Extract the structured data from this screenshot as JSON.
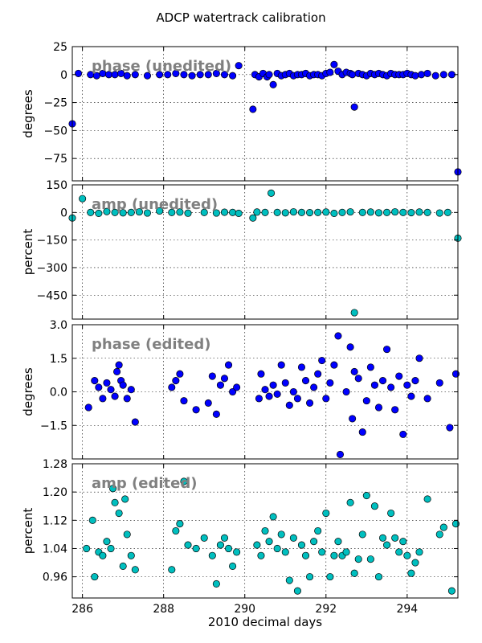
{
  "figure": {
    "title": "ADCP watertrack calibration",
    "xlabel": "2010 decimal days"
  },
  "chart_data": [
    {
      "type": "scatter",
      "annotation": "phase (unedited)",
      "xlabel": "2010 decimal days",
      "ylabel": "degrees",
      "xlim": [
        285.75,
        295.25
      ],
      "ylim": [
        -95,
        25
      ],
      "xticks": [
        286,
        288,
        290,
        292,
        294
      ],
      "yticks": [
        25,
        0,
        -25,
        -50,
        -75
      ],
      "grid": true,
      "color": "#0000ff",
      "x": [
        285.75,
        285.9,
        286.2,
        286.35,
        286.5,
        286.65,
        286.8,
        286.95,
        287.1,
        287.3,
        287.6,
        287.9,
        288.1,
        288.3,
        288.5,
        288.7,
        288.9,
        289.1,
        289.3,
        289.5,
        289.7,
        289.85,
        290.2,
        290.25,
        290.35,
        290.45,
        290.55,
        290.6,
        290.7,
        290.8,
        290.9,
        291.0,
        291.1,
        291.2,
        291.3,
        291.4,
        291.5,
        291.6,
        291.7,
        291.8,
        291.9,
        292.0,
        292.1,
        292.2,
        292.3,
        292.4,
        292.5,
        292.6,
        292.65,
        292.7,
        292.8,
        292.9,
        293.0,
        293.1,
        293.2,
        293.3,
        293.4,
        293.5,
        293.6,
        293.7,
        293.8,
        293.9,
        294.0,
        294.1,
        294.2,
        294.35,
        294.5,
        294.7,
        294.9,
        295.1,
        295.25
      ],
      "y": [
        -44,
        1,
        0,
        -1,
        1,
        0,
        0,
        1,
        -1,
        0,
        -1,
        0,
        0,
        1,
        0,
        -1,
        0,
        0,
        1,
        0,
        -1,
        8,
        -31,
        0,
        -2,
        1,
        -2,
        0,
        -9,
        1,
        -1,
        0,
        1,
        -1,
        0,
        0,
        1,
        -1,
        0,
        0,
        -1,
        1,
        2,
        9,
        3,
        0,
        2,
        1,
        0,
        -29,
        1,
        0,
        -1,
        1,
        0,
        1,
        0,
        -1,
        1,
        0,
        0,
        0,
        1,
        0,
        -1,
        0,
        1,
        -1,
        0,
        0,
        -87
      ]
    },
    {
      "type": "scatter",
      "annotation": "amp (unedited)",
      "xlabel": "2010 decimal days",
      "ylabel": "percent",
      "xlim": [
        285.75,
        295.25
      ],
      "ylim": [
        -580,
        150
      ],
      "xticks": [
        286,
        288,
        290,
        292,
        294
      ],
      "yticks": [
        150,
        0,
        -150,
        -300,
        -450
      ],
      "grid": true,
      "color": "#00bfbf",
      "x": [
        285.75,
        286.0,
        286.2,
        286.4,
        286.6,
        286.8,
        287.0,
        287.2,
        287.4,
        287.6,
        287.9,
        288.2,
        288.4,
        288.6,
        289.0,
        289.3,
        289.5,
        289.7,
        289.85,
        290.2,
        290.3,
        290.5,
        290.65,
        290.8,
        291.0,
        291.2,
        291.4,
        291.6,
        291.8,
        292.0,
        292.2,
        292.4,
        292.6,
        292.7,
        292.9,
        293.1,
        293.3,
        293.5,
        293.7,
        293.9,
        294.1,
        294.3,
        294.5,
        294.8,
        295.0,
        295.25
      ],
      "y": [
        -30,
        75,
        0,
        -5,
        5,
        0,
        -2,
        0,
        3,
        -3,
        8,
        0,
        2,
        -4,
        0,
        -3,
        1,
        0,
        -5,
        -30,
        2,
        0,
        105,
        0,
        -2,
        3,
        0,
        -1,
        0,
        2,
        -5,
        0,
        3,
        -545,
        0,
        2,
        -2,
        0,
        3,
        0,
        -1,
        2,
        0,
        -3,
        0,
        -140
      ]
    },
    {
      "type": "scatter",
      "annotation": "phase (edited)",
      "xlabel": "2010 decimal days",
      "ylabel": "degrees",
      "xlim": [
        285.75,
        295.25
      ],
      "ylim": [
        -3.0,
        3.0
      ],
      "xticks": [
        286,
        288,
        290,
        292,
        294
      ],
      "yticks": [
        3.0,
        1.5,
        0.0,
        -1.5
      ],
      "grid": true,
      "color": "#0000ff",
      "x": [
        286.15,
        286.3,
        286.4,
        286.5,
        286.6,
        286.7,
        286.8,
        286.85,
        286.9,
        286.95,
        287.0,
        287.1,
        287.2,
        287.3,
        288.2,
        288.3,
        288.4,
        288.5,
        288.8,
        289.1,
        289.2,
        289.3,
        289.4,
        289.5,
        289.6,
        289.7,
        289.8,
        290.35,
        290.4,
        290.5,
        290.6,
        290.7,
        290.8,
        290.9,
        291.0,
        291.1,
        291.2,
        291.3,
        291.4,
        291.5,
        291.6,
        291.7,
        291.8,
        291.9,
        292.0,
        292.1,
        292.2,
        292.3,
        292.35,
        292.5,
        292.6,
        292.65,
        292.7,
        292.8,
        292.9,
        293.0,
        293.1,
        293.2,
        293.3,
        293.4,
        293.5,
        293.6,
        293.7,
        293.8,
        293.9,
        294.0,
        294.1,
        294.2,
        294.3,
        294.5,
        294.8,
        295.05,
        295.2
      ],
      "y": [
        -0.7,
        0.5,
        0.2,
        -0.3,
        0.4,
        0.1,
        -0.2,
        0.9,
        1.2,
        0.5,
        0.3,
        -0.3,
        0.1,
        -1.35,
        0.2,
        0.5,
        0.8,
        -0.4,
        -0.8,
        -0.5,
        0.7,
        -1.0,
        0.3,
        0.6,
        1.2,
        0.0,
        0.2,
        -0.3,
        0.8,
        0.1,
        -0.2,
        0.3,
        -0.1,
        1.2,
        0.4,
        -0.6,
        0.0,
        -0.3,
        1.1,
        0.5,
        -0.5,
        0.2,
        0.8,
        1.4,
        -0.3,
        0.4,
        1.2,
        2.5,
        -2.8,
        0.0,
        2.0,
        -1.2,
        0.9,
        0.6,
        -1.8,
        -0.4,
        1.1,
        0.3,
        -0.7,
        0.5,
        1.9,
        0.2,
        -0.8,
        0.7,
        -1.9,
        0.3,
        -0.2,
        0.5,
        1.5,
        -0.3,
        0.4,
        -1.6,
        0.8
      ]
    },
    {
      "type": "scatter",
      "annotation": "amp (edited)",
      "xlabel": "2010 decimal days",
      "ylabel": "percent",
      "xlim": [
        285.75,
        295.25
      ],
      "ylim": [
        0.9,
        1.28
      ],
      "xticks": [
        286,
        288,
        290,
        292,
        294
      ],
      "yticks": [
        1.28,
        1.2,
        1.12,
        1.04,
        0.96
      ],
      "grid": true,
      "color": "#00bfbf",
      "x": [
        286.1,
        286.25,
        286.3,
        286.4,
        286.5,
        286.6,
        286.7,
        286.75,
        286.8,
        286.9,
        287.0,
        287.05,
        287.1,
        287.2,
        287.3,
        288.2,
        288.3,
        288.4,
        288.5,
        288.6,
        288.8,
        289.0,
        289.2,
        289.3,
        289.4,
        289.5,
        289.6,
        289.7,
        289.8,
        290.3,
        290.4,
        290.5,
        290.6,
        290.7,
        290.8,
        290.9,
        291.0,
        291.1,
        291.2,
        291.3,
        291.4,
        291.5,
        291.6,
        291.7,
        291.8,
        291.9,
        292.0,
        292.1,
        292.2,
        292.3,
        292.4,
        292.5,
        292.6,
        292.7,
        292.8,
        292.9,
        293.0,
        293.1,
        293.2,
        293.3,
        293.4,
        293.5,
        293.6,
        293.7,
        293.8,
        293.9,
        294.0,
        294.1,
        294.2,
        294.3,
        294.5,
        294.8,
        294.9,
        295.1,
        295.2
      ],
      "y": [
        1.04,
        1.12,
        0.96,
        1.03,
        1.02,
        1.06,
        1.04,
        1.21,
        1.17,
        1.14,
        0.99,
        1.18,
        1.08,
        1.02,
        0.98,
        0.98,
        1.09,
        1.11,
        1.23,
        1.05,
        1.04,
        1.07,
        1.02,
        0.94,
        1.05,
        1.07,
        1.04,
        0.99,
        1.03,
        1.05,
        1.02,
        1.09,
        1.06,
        1.13,
        1.04,
        1.08,
        1.03,
        0.95,
        1.07,
        0.92,
        1.05,
        1.02,
        0.96,
        1.06,
        1.09,
        1.03,
        1.14,
        0.96,
        1.02,
        1.06,
        1.02,
        1.03,
        1.17,
        0.97,
        1.01,
        1.08,
        1.19,
        1.01,
        1.16,
        0.96,
        1.07,
        1.05,
        1.14,
        1.07,
        1.03,
        1.06,
        1.02,
        0.97,
        1.0,
        1.03,
        1.18,
        1.08,
        1.1,
        0.92,
        1.11
      ]
    }
  ]
}
